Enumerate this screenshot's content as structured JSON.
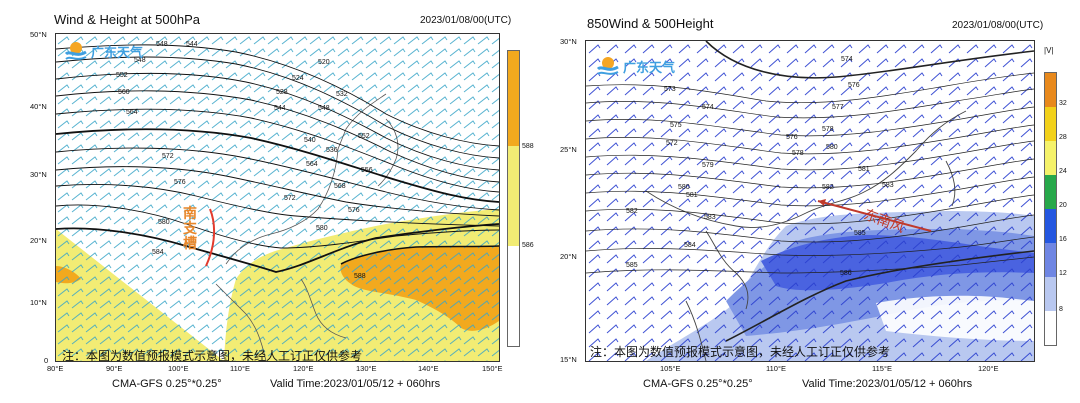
{
  "left": {
    "title": "Wind & Height at 500hPa",
    "date": "2023/01/08/00(UTC)",
    "lat_labels": [
      "50°N",
      "40°N",
      "30°N",
      "20°N",
      "10°N",
      "0"
    ],
    "lon_labels": [
      "80°E",
      "90°E",
      "100°E",
      "110°E",
      "120°E",
      "130°E",
      "140°E",
      "150°E"
    ],
    "colorbar_labels": [
      "588",
      "586"
    ],
    "contour_labels": [
      "544",
      "548",
      "548",
      "552",
      "556",
      "560",
      "564",
      "568",
      "572",
      "576",
      "580",
      "584",
      "588",
      "584",
      "520",
      "524",
      "528",
      "532",
      "540",
      "536",
      "544",
      "548",
      "552",
      "556",
      "564",
      "568",
      "572",
      "576",
      "580",
      "584"
    ],
    "annotation": "南支槽",
    "logo_text": "广东天气",
    "note": "注：本图为数值预报模式示意图，未经人工订正仅供参考",
    "model": "CMA-GFS  0.25°*0.25°",
    "valid_time": "Valid Time:2023/01/05/12 + 060hrs"
  },
  "right": {
    "title": "850Wind & 500Height",
    "date": "2023/01/08/00(UTC)",
    "lat_labels": [
      "30°N",
      "25°N",
      "20°N",
      "15°N"
    ],
    "lon_labels": [
      "105°E",
      "110°E",
      "115°E",
      "120°E"
    ],
    "colorbar_title": "|V|",
    "colorbar_labels": [
      "32",
      "28",
      "24",
      "20",
      "16",
      "12",
      "8"
    ],
    "contour_labels": [
      "574",
      "573",
      "574",
      "576",
      "575",
      "576",
      "577",
      "578",
      "579",
      "580",
      "580",
      "581",
      "581",
      "582",
      "582",
      "583",
      "583",
      "584",
      "585",
      "585",
      "586",
      "572",
      "578"
    ],
    "annotation": "东南风",
    "logo_text": "广东天气",
    "note": "注：本图为数值预报模式示意图，未经人工订正仅供参考",
    "model": "CMA-GFS  0.25°*0.25°",
    "valid_time": "Valid Time:2023/01/05/12 + 060hrs"
  }
}
